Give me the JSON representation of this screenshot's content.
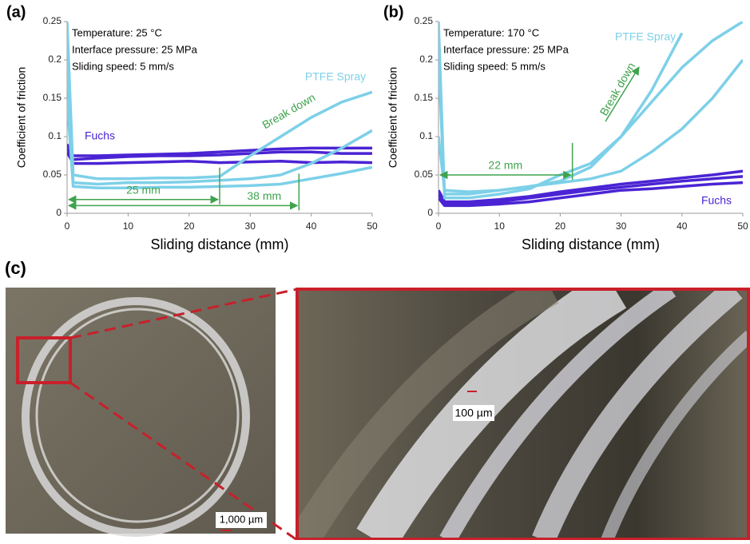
{
  "chart_data": [
    {
      "type": "line",
      "panel_label": "(a)",
      "y_label": "Coefficient of friction",
      "x_label": "Sliding distance (mm)",
      "info": [
        "Temperature: 25 °C",
        "Interface pressure: 25 MPa",
        "Sliding speed: 5 mm/s"
      ],
      "annotations": [
        "PTFE Spray",
        "Break down",
        "Fuchs"
      ],
      "ranges": [
        {
          "label": "25 mm",
          "x": [
            0,
            25
          ],
          "y": 0.018
        },
        {
          "label": "38 mm",
          "x": [
            0,
            38
          ],
          "y": 0.01
        }
      ],
      "xlim": [
        0,
        50
      ],
      "xticks": [
        0,
        10,
        20,
        30,
        40,
        50
      ],
      "ylim": [
        0,
        0.25
      ],
      "yticks": [
        0,
        0.05,
        0.1,
        0.15,
        0.2,
        0.25
      ],
      "x": [
        0,
        1,
        5,
        10,
        15,
        20,
        25,
        30,
        35,
        40,
        45,
        50
      ],
      "series": [
        {
          "color": "#4a24d4",
          "values": [
            0.09,
            0.075,
            0.075,
            0.076,
            0.077,
            0.078,
            0.08,
            0.082,
            0.084,
            0.085,
            0.085,
            0.085
          ]
        },
        {
          "color": "#4a24d4",
          "values": [
            0.085,
            0.07,
            0.072,
            0.074,
            0.075,
            0.075,
            0.076,
            0.078,
            0.08,
            0.08,
            0.078,
            0.078
          ]
        },
        {
          "color": "#4a24d4",
          "values": [
            0.08,
            0.065,
            0.065,
            0.066,
            0.067,
            0.068,
            0.066,
            0.067,
            0.068,
            0.066,
            0.067,
            0.066
          ]
        },
        {
          "color": "#7dd0e8",
          "values": [
            0.25,
            0.05,
            0.045,
            0.045,
            0.046,
            0.046,
            0.048,
            0.075,
            0.1,
            0.125,
            0.145,
            0.158
          ]
        },
        {
          "color": "#7dd0e8",
          "values": [
            0.2,
            0.04,
            0.038,
            0.04,
            0.04,
            0.041,
            0.043,
            0.045,
            0.05,
            0.065,
            0.085,
            0.108
          ]
        },
        {
          "color": "#7dd0e8",
          "values": [
            0.15,
            0.035,
            0.033,
            0.033,
            0.034,
            0.034,
            0.035,
            0.036,
            0.038,
            0.045,
            0.052,
            0.06
          ]
        }
      ]
    },
    {
      "type": "line",
      "panel_label": "(b)",
      "y_label": "Coefficient of friction",
      "x_label": "Sliding distance (mm)",
      "info": [
        "Temperature: 170 °C",
        "Interface pressure: 25 MPa",
        "Sliding speed: 5 mm/s"
      ],
      "annotations": [
        "PTFE Spray",
        "Break down",
        "Fuchs"
      ],
      "ranges": [
        {
          "label": "22 mm",
          "x": [
            0,
            22
          ],
          "y": 0.05
        }
      ],
      "xlim": [
        0,
        50
      ],
      "xticks": [
        0,
        10,
        20,
        30,
        40,
        50
      ],
      "ylim": [
        0,
        0.25
      ],
      "yticks": [
        0,
        0.05,
        0.1,
        0.15,
        0.2,
        0.25
      ],
      "x": [
        0,
        1,
        5,
        10,
        15,
        20,
        25,
        30,
        35,
        40,
        45,
        50
      ],
      "series": [
        {
          "color": "#4a24d4",
          "values": [
            0.03,
            0.015,
            0.015,
            0.018,
            0.022,
            0.028,
            0.033,
            0.038,
            0.042,
            0.046,
            0.05,
            0.055
          ]
        },
        {
          "color": "#4a24d4",
          "values": [
            0.025,
            0.012,
            0.012,
            0.015,
            0.02,
            0.025,
            0.03,
            0.034,
            0.038,
            0.042,
            0.045,
            0.048
          ]
        },
        {
          "color": "#4a24d4",
          "values": [
            0.02,
            0.01,
            0.01,
            0.012,
            0.015,
            0.02,
            0.025,
            0.03,
            0.032,
            0.035,
            0.038,
            0.04
          ]
        },
        {
          "color": "#7dd0e8",
          "values": [
            0.25,
            0.02,
            0.02,
            0.025,
            0.032,
            0.05,
            0.065,
            0.1,
            0.16,
            0.235,
            null,
            null
          ]
        },
        {
          "color": "#7dd0e8",
          "values": [
            0.2,
            0.025,
            0.025,
            0.03,
            0.035,
            0.042,
            0.06,
            0.1,
            0.145,
            0.19,
            0.225,
            0.25
          ]
        },
        {
          "color": "#7dd0e8",
          "values": [
            0.1,
            0.03,
            0.028,
            0.03,
            0.035,
            0.04,
            0.045,
            0.055,
            0.08,
            0.11,
            0.15,
            0.2
          ]
        }
      ]
    }
  ],
  "photos": {
    "panel_label": "(c)",
    "scale_bars": [
      "1,000 µm",
      "100 µm"
    ]
  }
}
